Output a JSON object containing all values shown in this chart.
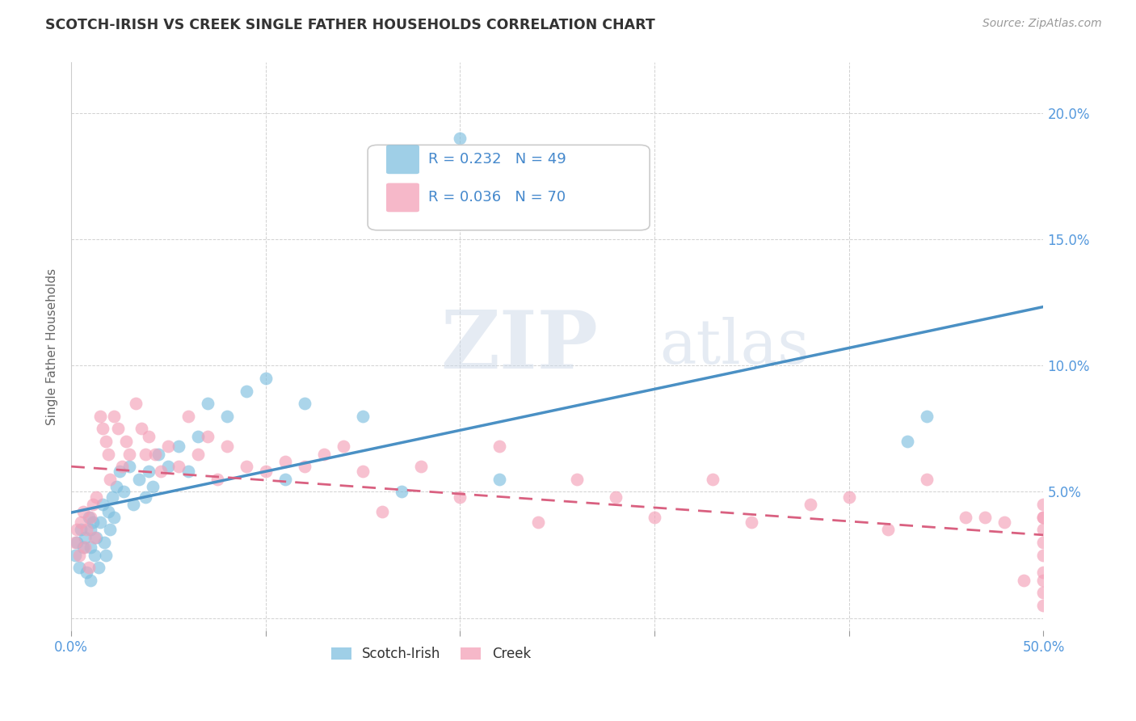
{
  "title": "SCOTCH-IRISH VS CREEK SINGLE FATHER HOUSEHOLDS CORRELATION CHART",
  "source": "Source: ZipAtlas.com",
  "ylabel": "Single Father Households",
  "xlim": [
    0,
    0.5
  ],
  "ylim": [
    -0.005,
    0.22
  ],
  "scotch_irish_R": 0.232,
  "scotch_irish_N": 49,
  "creek_R": 0.036,
  "creek_N": 70,
  "scotch_irish_color": "#7fbfdf",
  "creek_color": "#f4a0b8",
  "scotch_irish_line_color": "#4a90c4",
  "creek_line_color": "#d96080",
  "legend_label_1": "Scotch-Irish",
  "legend_label_2": "Creek",
  "watermark_zip": "ZIP",
  "watermark_atlas": "atlas",
  "scotch_irish_x": [
    0.002,
    0.003,
    0.004,
    0.005,
    0.006,
    0.007,
    0.008,
    0.009,
    0.01,
    0.01,
    0.01,
    0.011,
    0.012,
    0.013,
    0.014,
    0.015,
    0.016,
    0.017,
    0.018,
    0.019,
    0.02,
    0.021,
    0.022,
    0.023,
    0.025,
    0.027,
    0.03,
    0.032,
    0.035,
    0.038,
    0.04,
    0.042,
    0.045,
    0.05,
    0.055,
    0.06,
    0.065,
    0.07,
    0.08,
    0.09,
    0.1,
    0.11,
    0.12,
    0.15,
    0.17,
    0.2,
    0.22,
    0.43,
    0.44
  ],
  "scotch_irish_y": [
    0.025,
    0.03,
    0.02,
    0.035,
    0.028,
    0.032,
    0.018,
    0.04,
    0.035,
    0.028,
    0.015,
    0.038,
    0.025,
    0.032,
    0.02,
    0.038,
    0.045,
    0.03,
    0.025,
    0.042,
    0.035,
    0.048,
    0.04,
    0.052,
    0.058,
    0.05,
    0.06,
    0.045,
    0.055,
    0.048,
    0.058,
    0.052,
    0.065,
    0.06,
    0.068,
    0.058,
    0.072,
    0.085,
    0.08,
    0.09,
    0.095,
    0.055,
    0.085,
    0.08,
    0.05,
    0.19,
    0.055,
    0.07,
    0.08
  ],
  "creek_x": [
    0.002,
    0.003,
    0.004,
    0.005,
    0.006,
    0.007,
    0.008,
    0.009,
    0.01,
    0.011,
    0.012,
    0.013,
    0.015,
    0.016,
    0.018,
    0.019,
    0.02,
    0.022,
    0.024,
    0.026,
    0.028,
    0.03,
    0.033,
    0.036,
    0.038,
    0.04,
    0.043,
    0.046,
    0.05,
    0.055,
    0.06,
    0.065,
    0.07,
    0.075,
    0.08,
    0.09,
    0.1,
    0.11,
    0.12,
    0.13,
    0.14,
    0.15,
    0.16,
    0.18,
    0.2,
    0.22,
    0.24,
    0.26,
    0.28,
    0.3,
    0.33,
    0.35,
    0.38,
    0.4,
    0.42,
    0.44,
    0.46,
    0.47,
    0.48,
    0.49,
    0.5,
    0.5,
    0.5,
    0.5,
    0.5,
    0.5,
    0.5,
    0.5,
    0.5,
    0.5
  ],
  "creek_y": [
    0.03,
    0.035,
    0.025,
    0.038,
    0.042,
    0.028,
    0.035,
    0.02,
    0.04,
    0.045,
    0.032,
    0.048,
    0.08,
    0.075,
    0.07,
    0.065,
    0.055,
    0.08,
    0.075,
    0.06,
    0.07,
    0.065,
    0.085,
    0.075,
    0.065,
    0.072,
    0.065,
    0.058,
    0.068,
    0.06,
    0.08,
    0.065,
    0.072,
    0.055,
    0.068,
    0.06,
    0.058,
    0.062,
    0.06,
    0.065,
    0.068,
    0.058,
    0.042,
    0.06,
    0.048,
    0.068,
    0.038,
    0.055,
    0.048,
    0.04,
    0.055,
    0.038,
    0.045,
    0.048,
    0.035,
    0.055,
    0.04,
    0.04,
    0.038,
    0.015,
    0.04,
    0.035,
    0.03,
    0.025,
    0.018,
    0.045,
    0.01,
    0.04,
    0.015,
    0.005
  ]
}
